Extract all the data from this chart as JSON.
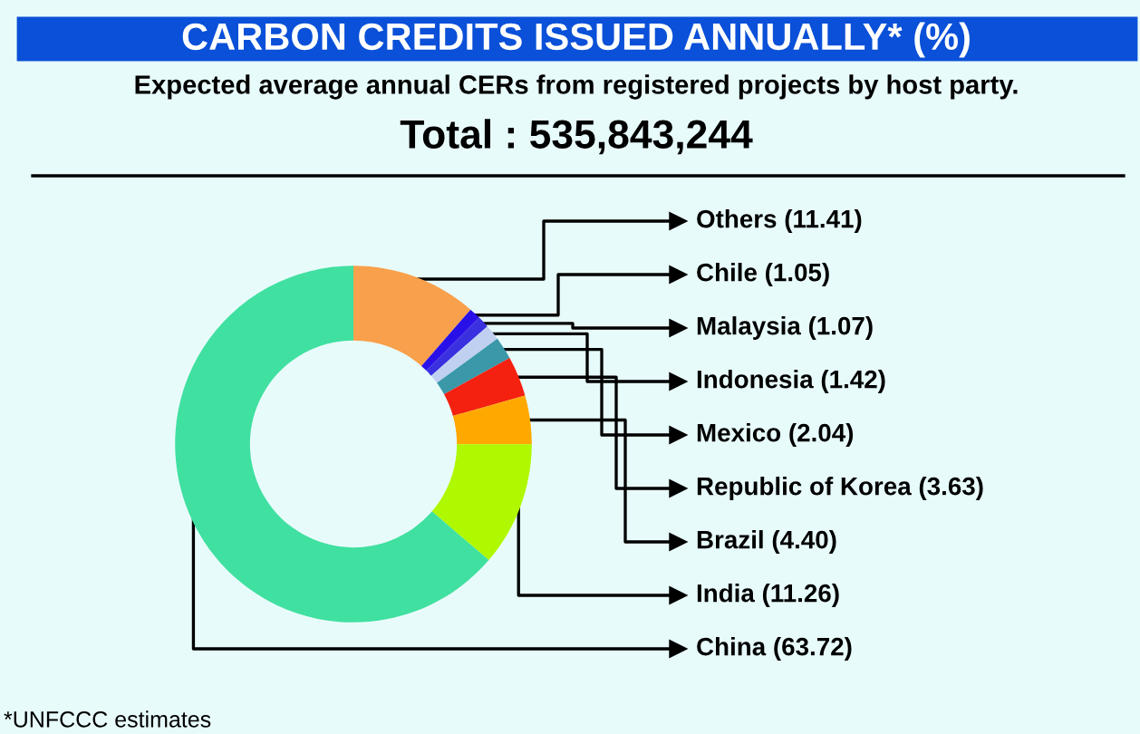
{
  "chart_data": {
    "type": "donut",
    "title": "CARBON CREDITS ISSUED ANNUALLY* (%)",
    "subtitle": "Expected average annual CERs from registered projects by host party.",
    "annotations": [
      "Total : 535,843,244",
      "*UNFCCC estimates"
    ],
    "categories": [
      "Others",
      "Chile",
      "Malaysia",
      "Indonesia",
      "Mexico",
      "Republic of Korea",
      "Brazil",
      "India",
      "China"
    ],
    "values": [
      11.41,
      1.05,
      1.07,
      1.42,
      2.04,
      3.63,
      4.4,
      11.26,
      63.72
    ],
    "value_labels": [
      "(11.41)",
      "(1.05)",
      "(1.07)",
      "(1.42)",
      "(2.04)",
      "(3.63)",
      "(4.40)",
      "(11.26)",
      "(63.72)"
    ],
    "colors": [
      "#f9a04c",
      "#2a10e8",
      "#3a30e0",
      "#c0d0f0",
      "#3a98a8",
      "#f42010",
      "#ffa800",
      "#b0f800",
      "#40e0a0"
    ],
    "legend": false
  }
}
